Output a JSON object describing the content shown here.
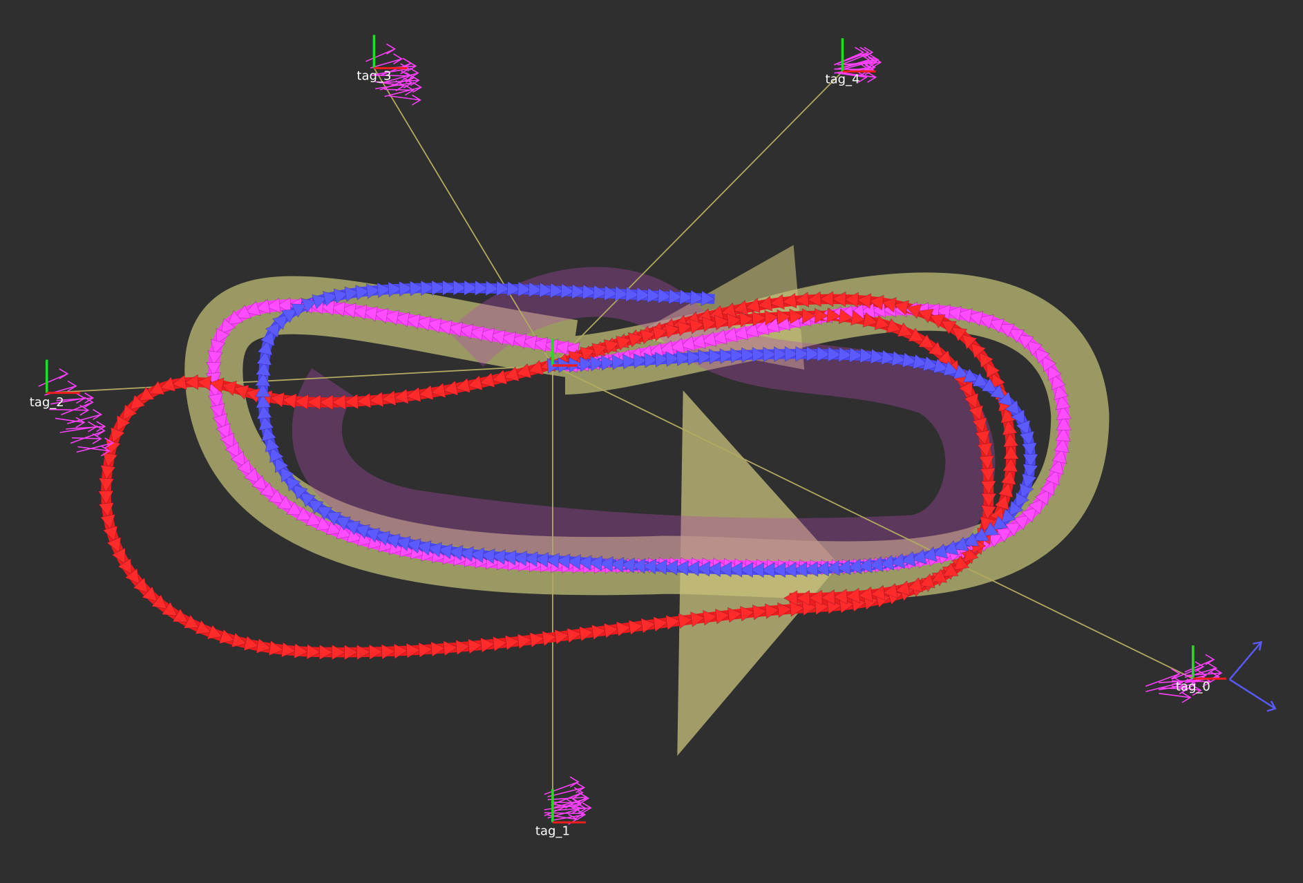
{
  "tags": [
    {
      "label": "tag_3"
    },
    {
      "label": "tag_4"
    },
    {
      "label": "tag_2"
    },
    {
      "label": "tag_0"
    },
    {
      "label": "tag_1"
    }
  ]
}
